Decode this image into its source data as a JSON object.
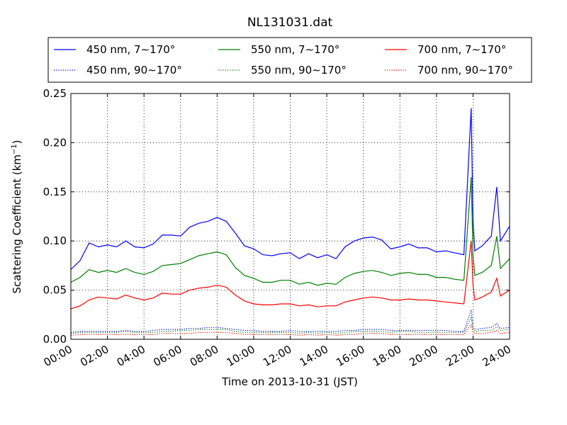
{
  "chart_data": {
    "type": "line",
    "title": "NL131031.dat",
    "xlabel": "Time on 2013-10-31 (JST)",
    "ylabel": "Scattering Coefficient (km",
    "ylabel_sup": "−1",
    "ylabel_tail": ")",
    "xlim": [
      0,
      24
    ],
    "ylim": [
      0,
      0.25
    ],
    "grid": true,
    "legend_position": "top",
    "x_tick_labels": [
      "00:00",
      "02:00",
      "04:00",
      "06:00",
      "08:00",
      "10:00",
      "12:00",
      "14:00",
      "16:00",
      "18:00",
      "20:00",
      "22:00",
      "24:00"
    ],
    "y_tick_values": [
      0,
      0.05,
      0.1,
      0.15,
      0.2,
      0.25
    ],
    "y_tick_labels": [
      "0.00",
      "0.05",
      "0.10",
      "0.15",
      "0.20",
      "0.25"
    ],
    "x_hours": [
      0,
      0.5,
      1,
      1.5,
      2,
      2.5,
      3,
      3.5,
      4,
      4.5,
      5,
      5.5,
      6,
      6.5,
      7,
      7.5,
      8,
      8.5,
      9,
      9.5,
      10,
      10.5,
      11,
      11.5,
      12,
      12.5,
      13,
      13.5,
      14,
      14.5,
      15,
      15.5,
      16,
      16.5,
      17,
      17.5,
      18,
      18.5,
      19,
      19.5,
      20,
      20.5,
      21,
      21.5,
      21.9,
      22,
      22.1,
      22.5,
      23,
      23.3,
      23.5,
      24
    ],
    "series": [
      {
        "name": "450 nm, 7∼170°",
        "color": "#0000ff",
        "style": "solid",
        "values": [
          0.071,
          0.08,
          0.098,
          0.094,
          0.096,
          0.094,
          0.1,
          0.094,
          0.093,
          0.097,
          0.106,
          0.106,
          0.105,
          0.114,
          0.118,
          0.12,
          0.124,
          0.12,
          0.108,
          0.095,
          0.092,
          0.086,
          0.085,
          0.087,
          0.088,
          0.082,
          0.087,
          0.083,
          0.086,
          0.082,
          0.094,
          0.1,
          0.103,
          0.104,
          0.101,
          0.092,
          0.094,
          0.097,
          0.093,
          0.093,
          0.089,
          0.09,
          0.088,
          0.086,
          0.235,
          0.12,
          0.09,
          0.095,
          0.105,
          0.155,
          0.1,
          0.115
        ]
      },
      {
        "name": "550 nm, 7∼170°",
        "color": "#008000",
        "style": "solid",
        "values": [
          0.058,
          0.063,
          0.071,
          0.068,
          0.07,
          0.068,
          0.072,
          0.068,
          0.066,
          0.069,
          0.075,
          0.076,
          0.077,
          0.081,
          0.085,
          0.087,
          0.089,
          0.086,
          0.073,
          0.065,
          0.062,
          0.058,
          0.058,
          0.06,
          0.06,
          0.056,
          0.058,
          0.055,
          0.057,
          0.056,
          0.063,
          0.067,
          0.069,
          0.07,
          0.068,
          0.065,
          0.067,
          0.068,
          0.066,
          0.066,
          0.063,
          0.063,
          0.061,
          0.06,
          0.165,
          0.085,
          0.065,
          0.068,
          0.075,
          0.105,
          0.072,
          0.082
        ]
      },
      {
        "name": "700 nm, 7∼170°",
        "color": "#ff0000",
        "style": "solid",
        "values": [
          0.031,
          0.034,
          0.04,
          0.043,
          0.042,
          0.041,
          0.045,
          0.042,
          0.04,
          0.042,
          0.047,
          0.046,
          0.046,
          0.05,
          0.052,
          0.053,
          0.055,
          0.053,
          0.045,
          0.039,
          0.036,
          0.035,
          0.035,
          0.036,
          0.036,
          0.034,
          0.035,
          0.033,
          0.034,
          0.034,
          0.038,
          0.04,
          0.042,
          0.043,
          0.042,
          0.04,
          0.04,
          0.041,
          0.04,
          0.04,
          0.039,
          0.038,
          0.037,
          0.036,
          0.1,
          0.055,
          0.04,
          0.043,
          0.048,
          0.062,
          0.044,
          0.05
        ]
      },
      {
        "name": "450 nm, 90∼170°",
        "color": "#0000ff",
        "style": "dotted",
        "values": [
          0.007,
          0.008,
          0.008,
          0.008,
          0.008,
          0.008,
          0.009,
          0.008,
          0.008,
          0.009,
          0.01,
          0.01,
          0.01,
          0.011,
          0.011,
          0.012,
          0.012,
          0.011,
          0.01,
          0.009,
          0.009,
          0.008,
          0.008,
          0.008,
          0.009,
          0.008,
          0.008,
          0.008,
          0.008,
          0.008,
          0.009,
          0.009,
          0.01,
          0.01,
          0.01,
          0.009,
          0.009,
          0.009,
          0.009,
          0.009,
          0.009,
          0.009,
          0.008,
          0.008,
          0.03,
          0.012,
          0.01,
          0.011,
          0.012,
          0.016,
          0.011,
          0.012
        ]
      },
      {
        "name": "550 nm, 90∼170°",
        "color": "#008000",
        "style": "dotted",
        "values": [
          0.006,
          0.007,
          0.007,
          0.007,
          0.007,
          0.007,
          0.008,
          0.007,
          0.007,
          0.007,
          0.008,
          0.008,
          0.009,
          0.009,
          0.01,
          0.01,
          0.01,
          0.01,
          0.008,
          0.007,
          0.007,
          0.007,
          0.007,
          0.007,
          0.007,
          0.006,
          0.007,
          0.006,
          0.007,
          0.006,
          0.007,
          0.008,
          0.008,
          0.008,
          0.008,
          0.007,
          0.008,
          0.008,
          0.007,
          0.007,
          0.007,
          0.007,
          0.007,
          0.007,
          0.022,
          0.01,
          0.008,
          0.009,
          0.009,
          0.013,
          0.009,
          0.01
        ]
      },
      {
        "name": "700 nm, 90∼170°",
        "color": "#ff0000",
        "style": "dotted",
        "values": [
          0.004,
          0.005,
          0.005,
          0.005,
          0.005,
          0.005,
          0.005,
          0.005,
          0.005,
          0.005,
          0.006,
          0.006,
          0.006,
          0.006,
          0.007,
          0.007,
          0.007,
          0.007,
          0.006,
          0.005,
          0.005,
          0.005,
          0.005,
          0.005,
          0.005,
          0.004,
          0.005,
          0.004,
          0.005,
          0.004,
          0.005,
          0.005,
          0.006,
          0.006,
          0.006,
          0.005,
          0.005,
          0.005,
          0.005,
          0.005,
          0.005,
          0.005,
          0.005,
          0.005,
          0.015,
          0.007,
          0.006,
          0.006,
          0.007,
          0.009,
          0.006,
          0.007
        ]
      }
    ]
  }
}
